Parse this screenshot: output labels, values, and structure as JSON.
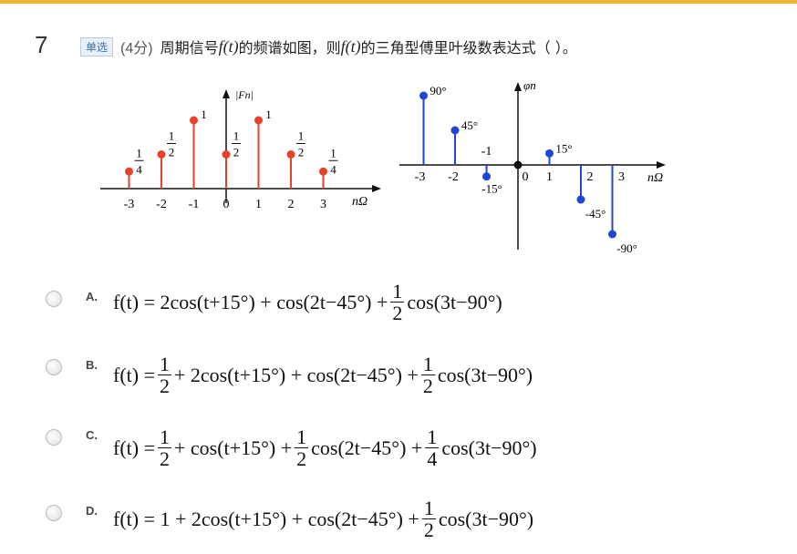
{
  "question": {
    "number": "7",
    "type_badge": "单选",
    "score": "(4分)",
    "stem_1": "周期信号",
    "stem_ft_1": "f(t)",
    "stem_2": "的频谱如图，则",
    "stem_ft_2": "f(t)",
    "stem_3": "的三角型傅里叶级数表达式（ ）。"
  },
  "chart_data": [
    {
      "type": "stem",
      "ylabel": "|Fn|",
      "xlabel": "nΩ",
      "categories": [
        "-3",
        "-2",
        "-1",
        "0",
        "1",
        "2",
        "3"
      ],
      "x": [
        -3,
        -2,
        -1,
        0,
        1,
        2,
        3
      ],
      "values": [
        0.25,
        0.5,
        1,
        0.5,
        1,
        0.5,
        0.25
      ],
      "value_labels": [
        "1/4",
        "1/2",
        "1",
        "1/2",
        "1",
        "1/2",
        "1/4"
      ],
      "colors": {
        "stem": "#e8402a"
      }
    },
    {
      "type": "stem",
      "ylabel": "φn",
      "xlabel": "nΩ",
      "categories": [
        "-3",
        "-2",
        "-1",
        "0",
        "1",
        "2",
        "3"
      ],
      "x": [
        -3,
        -2,
        -1,
        0,
        1,
        2,
        3
      ],
      "values": [
        90,
        45,
        -15,
        0,
        15,
        -45,
        -90
      ],
      "value_labels": [
        "90°",
        "45°",
        "-15°",
        "",
        "15°",
        "-45°",
        "-90°"
      ],
      "colors": {
        "stem": "#2046d8"
      }
    }
  ],
  "options": [
    {
      "letter": "A.",
      "parts": [
        "f(t) = 2cos(t+15°) + cos(2t−45°) + ",
        "1/2",
        "cos(3t−90°)"
      ]
    },
    {
      "letter": "B.",
      "parts": [
        "f(t) = ",
        "1/2",
        " + 2cos(t+15°) + cos(2t−45°) + ",
        "1/2",
        "cos(3t−90°)"
      ]
    },
    {
      "letter": "C.",
      "parts": [
        "f(t) = ",
        "1/2",
        " + cos(t+15°) + ",
        "1/2",
        "cos(2t−45°) + ",
        "1/4",
        "cos(3t−90°)"
      ]
    },
    {
      "letter": "D.",
      "parts": [
        "f(t) = 1 + 2cos(t+15°) + cos(2t−45°) + ",
        "1/2",
        "cos(3t−90°)"
      ]
    }
  ]
}
